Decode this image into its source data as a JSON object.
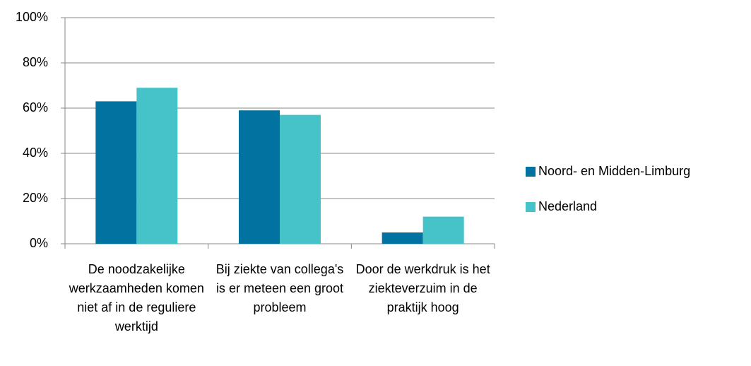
{
  "chart_data": {
    "type": "bar",
    "categories": [
      "De noodzakelijke werkzaamheden komen niet af in de reguliere werktijd",
      "Bij ziekte van collega's is er meteen een groot probleem",
      "Door de werkdruk is het ziekteverzuim in de praktijk hoog"
    ],
    "series": [
      {
        "name": "Noord- en Midden-Limburg",
        "color": "#0272a0",
        "values": [
          63,
          59,
          5
        ]
      },
      {
        "name": "Nederland",
        "color": "#45c3c8",
        "values": [
          69,
          57,
          12
        ]
      }
    ],
    "ylim": [
      0,
      100
    ],
    "yticks": [
      {
        "value": 0,
        "label": "0%"
      },
      {
        "value": 20,
        "label": "20%"
      },
      {
        "value": 40,
        "label": "40%"
      },
      {
        "value": 60,
        "label": "60%"
      },
      {
        "value": 80,
        "label": "80%"
      },
      {
        "value": 100,
        "label": "100%"
      }
    ],
    "grid": true,
    "legend": "right"
  }
}
